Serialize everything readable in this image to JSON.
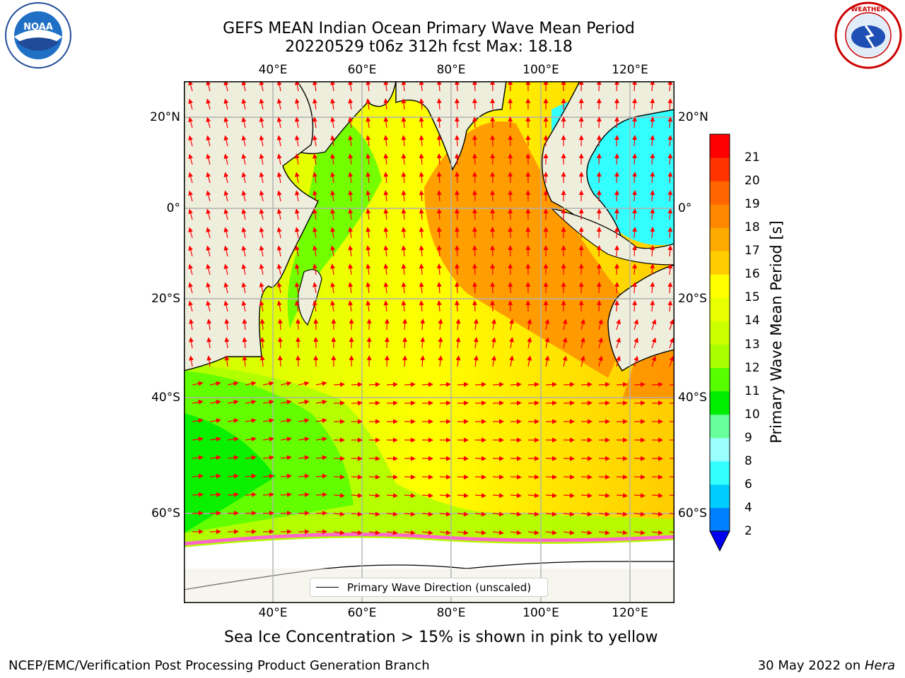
{
  "title": {
    "line1": "GEFS MEAN Indian Ocean Primary Wave Mean Period",
    "line2": "20220529 t06z 312h fcst   Max: 18.18"
  },
  "logos": {
    "left": "NOAA",
    "right": "NATIONAL WEATHER SERVICE"
  },
  "map": {
    "lon_ticks": [
      "40°E",
      "60°E",
      "80°E",
      "100°E",
      "120°E"
    ],
    "lat_ticks": [
      "20°N",
      "0°",
      "20°S",
      "40°S",
      "60°S"
    ],
    "legend_label": "Primary Wave Direction (unscaled)",
    "colors": {
      "land": "#eeeedd",
      "ice_free_ocean_mid": "#ffff00",
      "arrow": "#ff0000"
    }
  },
  "colorbar": {
    "label": "Primary Wave Mean Period [s]",
    "levels": [
      2,
      4,
      6,
      8,
      9,
      10,
      11,
      12,
      13,
      14,
      15,
      16,
      17,
      18,
      19,
      20,
      21
    ],
    "labels": [
      "2",
      "4",
      "6",
      "8",
      "9",
      "10",
      "11",
      "12",
      "13",
      "14",
      "15",
      "16",
      "17",
      "18",
      "19",
      "20",
      "21"
    ],
    "colors": [
      "#0080ff",
      "#00ccff",
      "#33ffff",
      "#99ffff",
      "#66ff99",
      "#00ee00",
      "#55ff00",
      "#aaff00",
      "#ccff00",
      "#e8ff00",
      "#ffff00",
      "#ffcc00",
      "#ffaa00",
      "#ff8800",
      "#ff6600",
      "#ff3300",
      "#ff0000"
    ],
    "under_color": "#0000ee"
  },
  "note": "Sea Ice Concentration > 15% is shown in pink to yellow",
  "footer": {
    "left": "NCEP/EMC/Verification Post Processing Product Generation Branch",
    "right_prefix": "30 May 2022 on ",
    "right_machine": "Hera"
  }
}
